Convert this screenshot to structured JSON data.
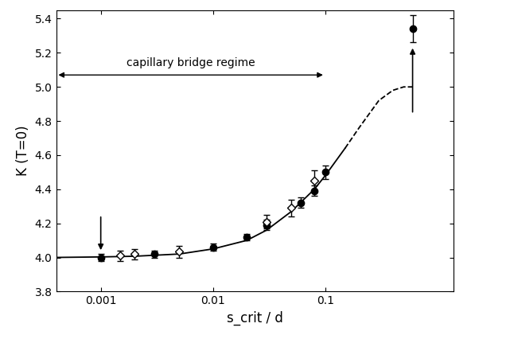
{
  "chart_data": {
    "type": "scatter",
    "x_label": "s_crit / d",
    "y_label": "K (T=0)",
    "log": "x",
    "xlim": [
      0.0004,
      1.4
    ],
    "xticks": [
      0.001,
      0.01,
      0.1
    ],
    "ylim": [
      3.8,
      5.45
    ],
    "yticks": [
      3.8,
      4.0,
      4.2,
      4.4,
      4.6,
      4.8,
      5.0,
      5.2,
      5.4
    ],
    "annotations": [
      {
        "text": "capillary bridge regime",
        "x": [
          0.0004,
          0.1
        ],
        "y": 5.07
      }
    ],
    "series": [
      {
        "type": "scatter",
        "marker": "circle",
        "color": "#000000",
        "x": [
          0.001,
          0.003,
          0.01,
          0.02,
          0.03,
          0.06,
          0.08,
          0.1,
          0.6
        ],
        "values": [
          4.0,
          4.02,
          4.06,
          4.12,
          4.19,
          4.32,
          4.39,
          4.5,
          5.34
        ],
        "error": [
          0.02,
          0.02,
          0.02,
          0.02,
          0.03,
          0.03,
          0.03,
          0.04,
          0.08
        ]
      },
      {
        "type": "scatter",
        "marker": "diamond",
        "color": "#000000",
        "x": [
          0.0015,
          0.002,
          0.005,
          0.03,
          0.05,
          0.08
        ],
        "values": [
          4.01,
          4.02,
          4.035,
          4.21,
          4.29,
          4.45
        ],
        "error": [
          0.03,
          0.03,
          0.035,
          0.04,
          0.05,
          0.06
        ]
      },
      {
        "type": "line",
        "line_style": "solid",
        "color": "#000000",
        "x": [
          0.0004,
          0.001,
          0.002,
          0.005,
          0.01,
          0.02,
          0.03,
          0.05,
          0.08,
          0.1,
          0.15
        ],
        "values": [
          4.0,
          4.003,
          4.007,
          4.02,
          4.05,
          4.1,
          4.16,
          4.27,
          4.4,
          4.48,
          4.64
        ]
      },
      {
        "type": "line",
        "line_style": "dashed",
        "color": "#000000",
        "x": [
          0.15,
          0.2,
          0.3,
          0.4,
          0.5,
          0.6
        ],
        "values": [
          4.64,
          4.76,
          4.92,
          4.98,
          5.0,
          5.0
        ]
      }
    ]
  }
}
